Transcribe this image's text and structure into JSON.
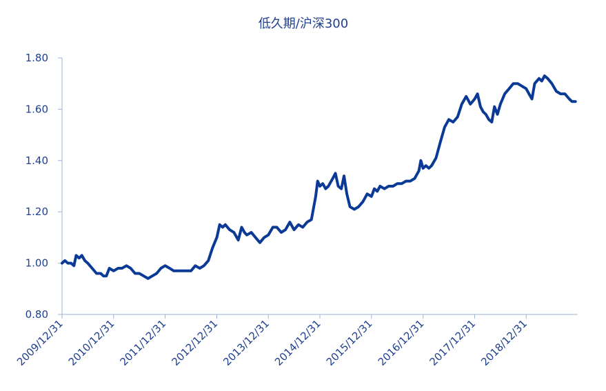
{
  "chart_data": {
    "type": "line",
    "title": "低久期/沪深300",
    "xlabel": "",
    "ylabel": "",
    "ylim": [
      0.8,
      1.8
    ],
    "yticks": [
      "0.80",
      "1.00",
      "1.20",
      "1.40",
      "1.60",
      "1.80"
    ],
    "xticks": [
      "2009/12/31",
      "2010/12/31",
      "2011/12/31",
      "2012/12/31",
      "2013/12/31",
      "2014/12/31",
      "2015/12/31",
      "2016/12/31",
      "2017/12/31",
      "2018/12/31"
    ],
    "xlim": [
      "2009/12/31",
      "2019/12/31"
    ],
    "grid": false,
    "series": [
      {
        "color": "#0b3a96",
        "points": [
          [
            "2009/12/31",
            1.0
          ],
          [
            "2010/01/20",
            1.01
          ],
          [
            "2010/02/10",
            1.0
          ],
          [
            "2010/03/05",
            1.0
          ],
          [
            "2010/03/25",
            0.99
          ],
          [
            "2010/04/10",
            1.03
          ],
          [
            "2010/05/01",
            1.02
          ],
          [
            "2010/05/20",
            1.03
          ],
          [
            "2010/06/10",
            1.01
          ],
          [
            "2010/07/01",
            1.0
          ],
          [
            "2010/08/01",
            0.98
          ],
          [
            "2010/09/01",
            0.96
          ],
          [
            "2010/10/01",
            0.96
          ],
          [
            "2010/10/20",
            0.95
          ],
          [
            "2010/11/10",
            0.95
          ],
          [
            "2010/12/01",
            0.98
          ],
          [
            "2010/12/31",
            0.97
          ],
          [
            "2011/02/01",
            0.98
          ],
          [
            "2011/03/01",
            0.98
          ],
          [
            "2011/04/01",
            0.99
          ],
          [
            "2011/05/01",
            0.98
          ],
          [
            "2011/06/01",
            0.96
          ],
          [
            "2011/07/01",
            0.96
          ],
          [
            "2011/08/01",
            0.95
          ],
          [
            "2011/09/01",
            0.94
          ],
          [
            "2011/10/01",
            0.95
          ],
          [
            "2011/11/01",
            0.96
          ],
          [
            "2011/12/01",
            0.98
          ],
          [
            "2011/12/31",
            0.99
          ],
          [
            "2012/02/01",
            0.98
          ],
          [
            "2012/03/01",
            0.97
          ],
          [
            "2012/04/01",
            0.97
          ],
          [
            "2012/05/01",
            0.97
          ],
          [
            "2012/06/01",
            0.97
          ],
          [
            "2012/07/01",
            0.97
          ],
          [
            "2012/08/01",
            0.99
          ],
          [
            "2012/09/01",
            0.98
          ],
          [
            "2012/10/01",
            0.99
          ],
          [
            "2012/11/01",
            1.01
          ],
          [
            "2012/12/01",
            1.06
          ],
          [
            "2012/12/31",
            1.1
          ],
          [
            "2013/01/20",
            1.15
          ],
          [
            "2013/02/10",
            1.14
          ],
          [
            "2013/03/01",
            1.15
          ],
          [
            "2013/04/01",
            1.13
          ],
          [
            "2013/05/01",
            1.12
          ],
          [
            "2013/06/01",
            1.09
          ],
          [
            "2013/06/25",
            1.14
          ],
          [
            "2013/07/15",
            1.12
          ],
          [
            "2013/08/01",
            1.11
          ],
          [
            "2013/09/01",
            1.12
          ],
          [
            "2013/10/01",
            1.1
          ],
          [
            "2013/11/01",
            1.08
          ],
          [
            "2013/12/01",
            1.1
          ],
          [
            "2013/12/31",
            1.11
          ],
          [
            "2014/02/01",
            1.14
          ],
          [
            "2014/03/01",
            1.14
          ],
          [
            "2014/04/01",
            1.12
          ],
          [
            "2014/05/01",
            1.13
          ],
          [
            "2014/06/01",
            1.16
          ],
          [
            "2014/07/01",
            1.13
          ],
          [
            "2014/08/01",
            1.15
          ],
          [
            "2014/09/01",
            1.14
          ],
          [
            "2014/10/01",
            1.16
          ],
          [
            "2014/11/01",
            1.17
          ],
          [
            "2014/12/01",
            1.26
          ],
          [
            "2014/12/15",
            1.32
          ],
          [
            "2014/12/31",
            1.3
          ],
          [
            "2015/01/20",
            1.31
          ],
          [
            "2015/02/10",
            1.29
          ],
          [
            "2015/03/01",
            1.3
          ],
          [
            "2015/04/01",
            1.33
          ],
          [
            "2015/04/20",
            1.35
          ],
          [
            "2015/05/10",
            1.3
          ],
          [
            "2015/06/01",
            1.29
          ],
          [
            "2015/06/20",
            1.34
          ],
          [
            "2015/07/10",
            1.27
          ],
          [
            "2015/08/01",
            1.22
          ],
          [
            "2015/09/01",
            1.21
          ],
          [
            "2015/10/01",
            1.22
          ],
          [
            "2015/11/01",
            1.24
          ],
          [
            "2015/12/01",
            1.27
          ],
          [
            "2015/12/31",
            1.26
          ],
          [
            "2016/01/20",
            1.29
          ],
          [
            "2016/02/10",
            1.28
          ],
          [
            "2016/03/01",
            1.3
          ],
          [
            "2016/04/01",
            1.29
          ],
          [
            "2016/05/01",
            1.3
          ],
          [
            "2016/06/01",
            1.3
          ],
          [
            "2016/07/01",
            1.31
          ],
          [
            "2016/08/01",
            1.31
          ],
          [
            "2016/09/01",
            1.32
          ],
          [
            "2016/10/01",
            1.32
          ],
          [
            "2016/11/01",
            1.33
          ],
          [
            "2016/12/01",
            1.36
          ],
          [
            "2016/12/15",
            1.4
          ],
          [
            "2016/12/31",
            1.37
          ],
          [
            "2017/01/20",
            1.38
          ],
          [
            "2017/02/10",
            1.37
          ],
          [
            "2017/03/01",
            1.38
          ],
          [
            "2017/04/01",
            1.41
          ],
          [
            "2017/05/01",
            1.47
          ],
          [
            "2017/06/01",
            1.53
          ],
          [
            "2017/07/01",
            1.56
          ],
          [
            "2017/08/01",
            1.55
          ],
          [
            "2017/09/01",
            1.57
          ],
          [
            "2017/10/01",
            1.62
          ],
          [
            "2017/11/01",
            1.65
          ],
          [
            "2017/12/01",
            1.62
          ],
          [
            "2017/12/31",
            1.64
          ],
          [
            "2018/01/20",
            1.66
          ],
          [
            "2018/02/10",
            1.61
          ],
          [
            "2018/03/01",
            1.59
          ],
          [
            "2018/03/20",
            1.58
          ],
          [
            "2018/04/10",
            1.56
          ],
          [
            "2018/05/01",
            1.55
          ],
          [
            "2018/05/20",
            1.61
          ],
          [
            "2018/06/10",
            1.58
          ],
          [
            "2018/07/01",
            1.62
          ],
          [
            "2018/08/01",
            1.66
          ],
          [
            "2018/09/01",
            1.68
          ],
          [
            "2018/10/01",
            1.7
          ],
          [
            "2018/11/01",
            1.7
          ],
          [
            "2018/12/01",
            1.69
          ],
          [
            "2018/12/31",
            1.68
          ],
          [
            "2019/01/20",
            1.66
          ],
          [
            "2019/02/10",
            1.64
          ],
          [
            "2019/03/01",
            1.7
          ],
          [
            "2019/04/01",
            1.72
          ],
          [
            "2019/04/20",
            1.71
          ],
          [
            "2019/05/10",
            1.73
          ],
          [
            "2019/06/01",
            1.72
          ],
          [
            "2019/07/01",
            1.7
          ],
          [
            "2019/08/01",
            1.67
          ],
          [
            "2019/09/01",
            1.66
          ],
          [
            "2019/10/01",
            1.66
          ],
          [
            "2019/11/01",
            1.64
          ],
          [
            "2019/11/20",
            1.63
          ],
          [
            "2019/12/15",
            1.63
          ]
        ]
      }
    ]
  }
}
